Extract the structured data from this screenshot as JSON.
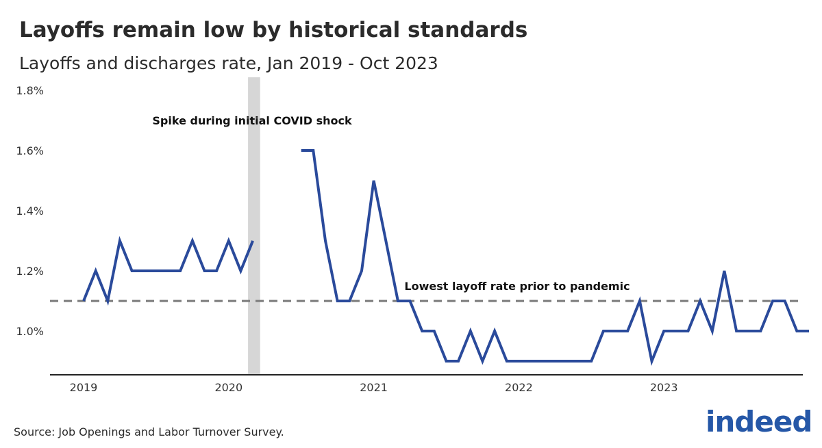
{
  "header": {
    "title": "Layoffs remain low by historical standards",
    "subtitle": "Layoffs and discharges rate, Jan 2019 - Oct 2023"
  },
  "footer": {
    "source": "Source: Job Openings and Labor Turnover Survey."
  },
  "logo": {
    "text": "indeed"
  },
  "colors": {
    "line": "#2a4a9b",
    "reference": "#7a7a7a",
    "shade": "#d6d6d6",
    "axis": "#222222",
    "logo": "#2557a7"
  },
  "chart_data": {
    "type": "line",
    "title": "Layoffs remain low by historical standards",
    "subtitle": "Layoffs and discharges rate, Jan 2019 - Oct 2023",
    "ylim": [
      0.0086,
      1.8
    ],
    "yticks": [
      1.0,
      1.2,
      1.4,
      1.6,
      1.8
    ],
    "ytick_labels": [
      "1.0%",
      "1.2%",
      "1.4%",
      "1.6%",
      "1.8%"
    ],
    "xticks": [
      2019,
      2020,
      2021,
      2022,
      2023
    ],
    "xtick_labels": [
      "2019",
      "2020",
      "2021",
      "2022",
      "2023"
    ],
    "grid": false,
    "series": [
      {
        "start": "2019-01",
        "values": [
          1.1,
          1.2,
          1.1,
          1.3,
          1.2,
          1.2,
          1.2,
          1.2,
          1.2,
          1.3,
          1.2,
          1.2,
          1.3,
          1.2,
          1.3,
          null,
          null,
          null,
          1.6,
          1.6,
          1.3,
          1.1,
          1.1,
          1.2,
          1.5,
          1.3,
          1.1,
          1.1,
          1.0,
          1.0,
          0.9,
          0.9,
          1.0,
          0.9,
          1.0,
          0.9,
          0.9,
          0.9,
          0.9,
          0.9,
          0.9,
          0.9,
          0.9,
          1.0,
          1.0,
          1.0,
          1.1,
          0.9,
          1.0,
          1.0,
          1.0,
          1.1,
          1.0,
          1.2,
          1.0,
          1.0,
          1.0,
          1.1,
          1.1,
          1.0,
          1.0
        ]
      }
    ],
    "reference_line": {
      "value": 1.1,
      "label": "Lowest layoff rate prior to pandemic"
    },
    "shaded_period": {
      "start": "2020-03",
      "end": "2020-04",
      "label": "Spike during initial COVID shock"
    }
  }
}
